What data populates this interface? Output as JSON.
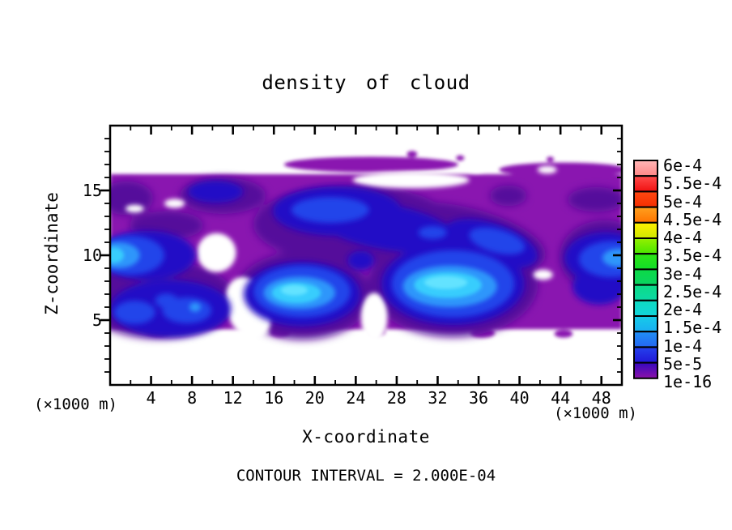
{
  "figure": {
    "title": "density of cloud",
    "footnote": "CONTOUR INTERVAL = 2.000E-04",
    "background": "#ffffff"
  },
  "axes": {
    "x": {
      "label": "X-coordinate",
      "unit": "(×1000 m)",
      "min": 0,
      "max": 50,
      "major_ticks": [
        4,
        8,
        12,
        16,
        20,
        24,
        28,
        32,
        36,
        40,
        44,
        48
      ],
      "minor_ticks": [
        2,
        6,
        10,
        14,
        18,
        22,
        26,
        30,
        34,
        38,
        42,
        46,
        50
      ]
    },
    "z": {
      "label": "Z-coordinate",
      "unit": "(×1000 m)",
      "min": 0,
      "max": 20,
      "major_ticks": [
        5,
        10,
        15
      ],
      "minor_ticks": [
        1,
        2,
        3,
        4,
        6,
        7,
        8,
        9,
        11,
        12,
        13,
        14,
        16,
        17,
        18,
        19
      ]
    }
  },
  "colorbar": {
    "labels": [
      "6e-4",
      "5.5e-4",
      "5e-4",
      "4.5e-4",
      "4e-4",
      "3.5e-4",
      "3e-4",
      "2.5e-4",
      "2e-4",
      "1.5e-4",
      "1e-4",
      "5e-5",
      "1e-16"
    ],
    "cells": [
      [
        "#ffb6b6",
        "#ff8686"
      ],
      [
        "#ff4c4c",
        "#f01010"
      ],
      [
        "#ff4812",
        "#f52e00"
      ],
      [
        "#ffa01e",
        "#ff7400"
      ],
      [
        "#fff000",
        "#cfe800"
      ],
      [
        "#96f000",
        "#4ae600"
      ],
      [
        "#2ee614",
        "#12dc2a"
      ],
      [
        "#0cda46",
        "#0ad462"
      ],
      [
        "#0cdc86",
        "#0cd8a6"
      ],
      [
        "#0edac0",
        "#12d4dc"
      ],
      [
        "#16cce8",
        "#1aaef2"
      ],
      [
        "#2090f6",
        "#2466f2"
      ],
      [
        "#2442ec",
        "#2216d8"
      ],
      [
        "#3408c0",
        "#8c12a8"
      ]
    ]
  },
  "chart_data": {
    "type": "heatmap",
    "variant": "filled-contour",
    "title": "density of cloud",
    "xlabel": "X-coordinate (×1000 m)",
    "ylabel": "Z-coordinate (×1000 m)",
    "xlim": [
      0,
      50
    ],
    "ylim": [
      0,
      20
    ],
    "grid": false,
    "legend_position": "right-colorbar",
    "contour_interval": "2.000E-04",
    "levels": [
      "1e-16",
      "5e-5",
      "1e-4",
      "1.5e-4",
      "2e-4",
      "2.5e-4",
      "3e-4",
      "3.5e-4",
      "4e-4",
      "4.5e-4",
      "5e-4",
      "5.5e-4",
      "6e-4"
    ],
    "observed_max_band": "2e-4 to 2.5e-4",
    "cloud_band_z_extent": [
      4.3,
      17.6
    ],
    "maxima": [
      {
        "x": 18.3,
        "z": 7.2,
        "value": "≈2.4e-4"
      },
      {
        "x": 33.0,
        "z": 7.8,
        "value": "≈2.4e-4"
      },
      {
        "x": 0.5,
        "z": 10.0,
        "value": "≈2.2e-4"
      },
      {
        "x": 49.7,
        "z": 9.8,
        "value": "≈1.8e-4"
      },
      {
        "x": 21.5,
        "z": 13.5,
        "value": "≈1.2e-4"
      }
    ],
    "layers": [
      {
        "name": "purple-band",
        "band": "1e-16 to 5e-5",
        "color": "#8a12b0",
        "blur": 2,
        "rects": [
          [
            0,
            4.3,
            50,
            16.25
          ]
        ],
        "blobs": [
          [
            25.5,
            17.0,
            8.5,
            0.6,
            0
          ],
          [
            44.3,
            16.6,
            6.3,
            0.55,
            0
          ],
          [
            29.5,
            17.8,
            0.5,
            0.25,
            0
          ],
          [
            34.2,
            17.5,
            0.4,
            0.2,
            0
          ],
          [
            43.0,
            17.4,
            0.35,
            0.2,
            0
          ],
          [
            4.7,
            4.15,
            1.3,
            0.4,
            0
          ],
          [
            16.6,
            4.05,
            1.0,
            0.35,
            0
          ],
          [
            26.1,
            4.1,
            0.8,
            0.3,
            0
          ],
          [
            36.4,
            4.0,
            1.2,
            0.35,
            0
          ],
          [
            44.3,
            3.95,
            0.9,
            0.3,
            0
          ]
        ]
      },
      {
        "name": "violet-shade",
        "band": "upper 1e-16 band",
        "color": "#55109b",
        "blur": 5,
        "blobs": [
          [
            1.6,
            14.4,
            2.6,
            1.3,
            0
          ],
          [
            11.0,
            14.6,
            4.2,
            1.4,
            0
          ],
          [
            5.5,
            12.3,
            3.6,
            1.1,
            0
          ],
          [
            23.7,
            12.4,
            9.7,
            3.0,
            0
          ],
          [
            34.0,
            11.3,
            8.7,
            2.5,
            12
          ],
          [
            38.9,
            14.6,
            1.8,
            0.8,
            0
          ],
          [
            4.75,
            6.6,
            7.5,
            3.0,
            0
          ],
          [
            18.8,
            6.9,
            6.7,
            3.4,
            0
          ],
          [
            33.5,
            7.8,
            8.3,
            4.1,
            0
          ],
          [
            48.3,
            9.9,
            4.4,
            2.8,
            0
          ],
          [
            47.5,
            14.3,
            2.8,
            0.95,
            0
          ]
        ]
      },
      {
        "name": "clear-holes",
        "band": "below 1e-16",
        "color": "#ffffff",
        "blur": 3,
        "blobs": [
          [
            10.4,
            10.2,
            1.9,
            1.5,
            0
          ],
          [
            13.5,
            5.9,
            2.1,
            2.5,
            -20
          ],
          [
            25.8,
            5.2,
            1.3,
            1.9,
            0
          ],
          [
            29.4,
            15.8,
            5.7,
            0.63,
            0
          ],
          [
            35.8,
            16.9,
            0.9,
            0.5,
            0
          ],
          [
            42.7,
            16.6,
            0.95,
            0.3,
            0
          ],
          [
            42.3,
            8.5,
            0.95,
            0.4,
            0
          ],
          [
            2.4,
            13.6,
            0.9,
            0.3,
            0
          ],
          [
            6.3,
            14.0,
            1.0,
            0.35,
            0
          ]
        ]
      },
      {
        "name": "navy",
        "band": "5e-5 to 1e-4",
        "color": "#2408c6",
        "blur": 4,
        "blobs": [
          [
            10.3,
            14.9,
            2.7,
            0.85,
            0
          ],
          [
            3.6,
            10.0,
            4.75,
            1.9,
            0
          ],
          [
            5.9,
            5.9,
            5.9,
            2.2,
            0
          ],
          [
            22.2,
            13.4,
            6.3,
            1.9,
            0
          ],
          [
            26.9,
            12.2,
            7.1,
            1.75,
            10
          ],
          [
            27.0,
            11.5,
            1.6,
            0.75,
            0
          ],
          [
            18.75,
            7.0,
            5.7,
            2.5,
            0
          ],
          [
            24.5,
            9.6,
            1.3,
            0.75,
            0
          ],
          [
            33.5,
            7.8,
            7.0,
            3.2,
            0
          ],
          [
            37.2,
            10.9,
            4.75,
            1.6,
            18
          ],
          [
            31.6,
            11.6,
            2.4,
            0.75,
            0
          ],
          [
            48.4,
            9.8,
            4.0,
            2.0,
            0
          ],
          [
            47.8,
            7.6,
            2.6,
            1.4,
            0
          ]
        ]
      },
      {
        "name": "blue",
        "band": "1e-4 to 1.5e-4",
        "color": "#2145ea",
        "blur": 3.5,
        "blobs": [
          [
            2.0,
            10.0,
            3.3,
            1.5,
            0
          ],
          [
            2.4,
            5.6,
            2.0,
            0.9,
            0
          ],
          [
            7.5,
            5.75,
            2.4,
            1.0,
            0
          ],
          [
            5.5,
            6.5,
            1.1,
            0.55,
            0
          ],
          [
            21.5,
            13.5,
            3.8,
            1.0,
            0
          ],
          [
            18.75,
            7.2,
            4.75,
            2.0,
            0
          ],
          [
            33.5,
            7.8,
            6.0,
            2.6,
            0
          ],
          [
            37.8,
            11.1,
            2.8,
            0.9,
            15
          ],
          [
            31.5,
            11.75,
            1.4,
            0.5,
            0
          ],
          [
            49.0,
            9.7,
            3.2,
            1.4,
            0
          ]
        ]
      },
      {
        "name": "sky-blue",
        "band": "1.5e-4 to 2e-4",
        "color": "#2e96fb",
        "blur": 3,
        "blobs": [
          [
            0.8,
            10.0,
            2.1,
            1.0,
            0
          ],
          [
            18.5,
            7.1,
            3.5,
            1.25,
            0
          ],
          [
            33.2,
            7.6,
            4.6,
            1.6,
            0
          ],
          [
            49.7,
            9.8,
            1.6,
            0.7,
            0
          ],
          [
            8.3,
            6.0,
            0.55,
            0.35,
            0
          ]
        ]
      },
      {
        "name": "cyan",
        "band": "2e-4 to 2.5e-4",
        "color": "#38cdfd",
        "blur": 2.5,
        "blobs": [
          [
            0.35,
            10.0,
            1.0,
            0.6,
            0
          ],
          [
            18.2,
            7.1,
            2.4,
            0.8,
            0
          ],
          [
            33.0,
            7.7,
            3.3,
            1.0,
            0
          ]
        ]
      },
      {
        "name": "bright-core",
        "band": "peak ≈2.4e-4",
        "color": "#63e3ff",
        "blur": 2,
        "blobs": [
          [
            32.8,
            7.9,
            2.1,
            0.5,
            0
          ],
          [
            18.0,
            7.3,
            1.3,
            0.4,
            0
          ]
        ]
      }
    ]
  }
}
